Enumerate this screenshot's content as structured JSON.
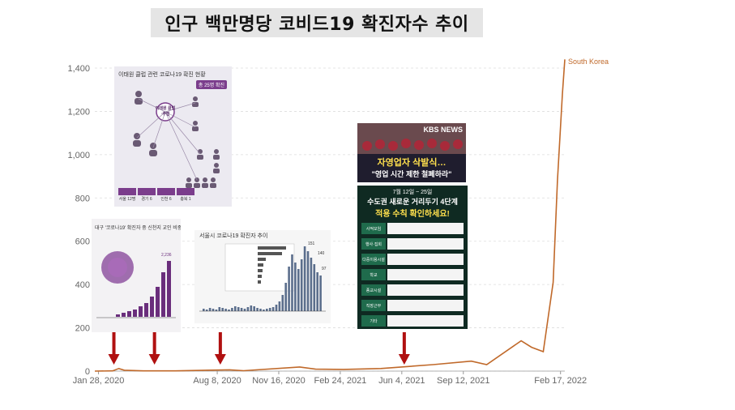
{
  "title": "인구 백만명당 코비드19 확진자수 추이",
  "chart_data": {
    "type": "line",
    "title": "인구 백만명당 코비드19 확진자수 추이",
    "xlabel": "",
    "ylabel": "",
    "ylim": [
      0,
      1400
    ],
    "yticks": [
      "0",
      "200",
      "400",
      "600",
      "800",
      "1,000",
      "1,200",
      "1,400"
    ],
    "xticks": [
      "Jan 28, 2020",
      "Aug 8, 2020",
      "Nov 16, 2020",
      "Feb 24, 2021",
      "Jun 4, 2021",
      "Sep 12, 2021",
      "Feb 17, 2022"
    ],
    "grid": "horizontal",
    "series": [
      {
        "name": "South Korea",
        "color": "#c0692a",
        "points": [
          [
            "2020-01-22",
            0
          ],
          [
            "2020-02-20",
            1
          ],
          [
            "2020-03-01",
            12
          ],
          [
            "2020-03-10",
            4
          ],
          [
            "2020-04-10",
            1
          ],
          [
            "2020-06-01",
            1
          ],
          [
            "2020-08-28",
            6
          ],
          [
            "2020-09-20",
            2
          ],
          [
            "2020-12-20",
            19
          ],
          [
            "2021-01-15",
            9
          ],
          [
            "2021-03-01",
            8
          ],
          [
            "2021-05-01",
            12
          ],
          [
            "2021-07-25",
            30
          ],
          [
            "2021-09-25",
            46
          ],
          [
            "2021-10-20",
            30
          ],
          [
            "2021-12-15",
            140
          ],
          [
            "2022-01-01",
            110
          ],
          [
            "2022-01-20",
            90
          ],
          [
            "2022-02-05",
            410
          ],
          [
            "2022-02-12",
            880
          ],
          [
            "2022-02-20",
            1280
          ],
          [
            "2022-02-24",
            1440
          ]
        ]
      }
    ],
    "annotations_arrows_at": [
      "2020-02-22",
      "2020-04-28",
      "2020-08-13",
      "2021-06-08"
    ]
  },
  "insets": {
    "inset1": {
      "title": "이태원 클럽 관련 코로나19 확진 현황",
      "badge": "총 25명 확진",
      "center": "이태원 클럽·주점",
      "footer": [
        "서울 12명",
        "경기 6",
        "인천 6",
        "충북 1"
      ]
    },
    "inset2": {
      "title": "대구 '코로나19' 확진자 중 신천지 교인 비중",
      "peak": "2,236",
      "labels": [
        "1,077",
        "1,397",
        "461",
        "484"
      ]
    },
    "inset3": {
      "title": "서울시 코로나19 확진자 추이",
      "peak": "151",
      "last": "140",
      "end": "97"
    },
    "inset4": {
      "brand": "KBS NEWS",
      "caption1": "자영업자 삭발식…",
      "caption2": "\"영업 시간 제한 철폐하라\""
    },
    "inset5": {
      "date": "7월 12일 ~ 25일",
      "headline1": "수도권 새로운 거리두기 4단계",
      "headline2": "적용 수칙 확인하세요!",
      "rows": [
        "사적모임",
        "행사·집회",
        "다중이용시설",
        "학교",
        "종교시설",
        "직장근무",
        "기타"
      ]
    }
  }
}
